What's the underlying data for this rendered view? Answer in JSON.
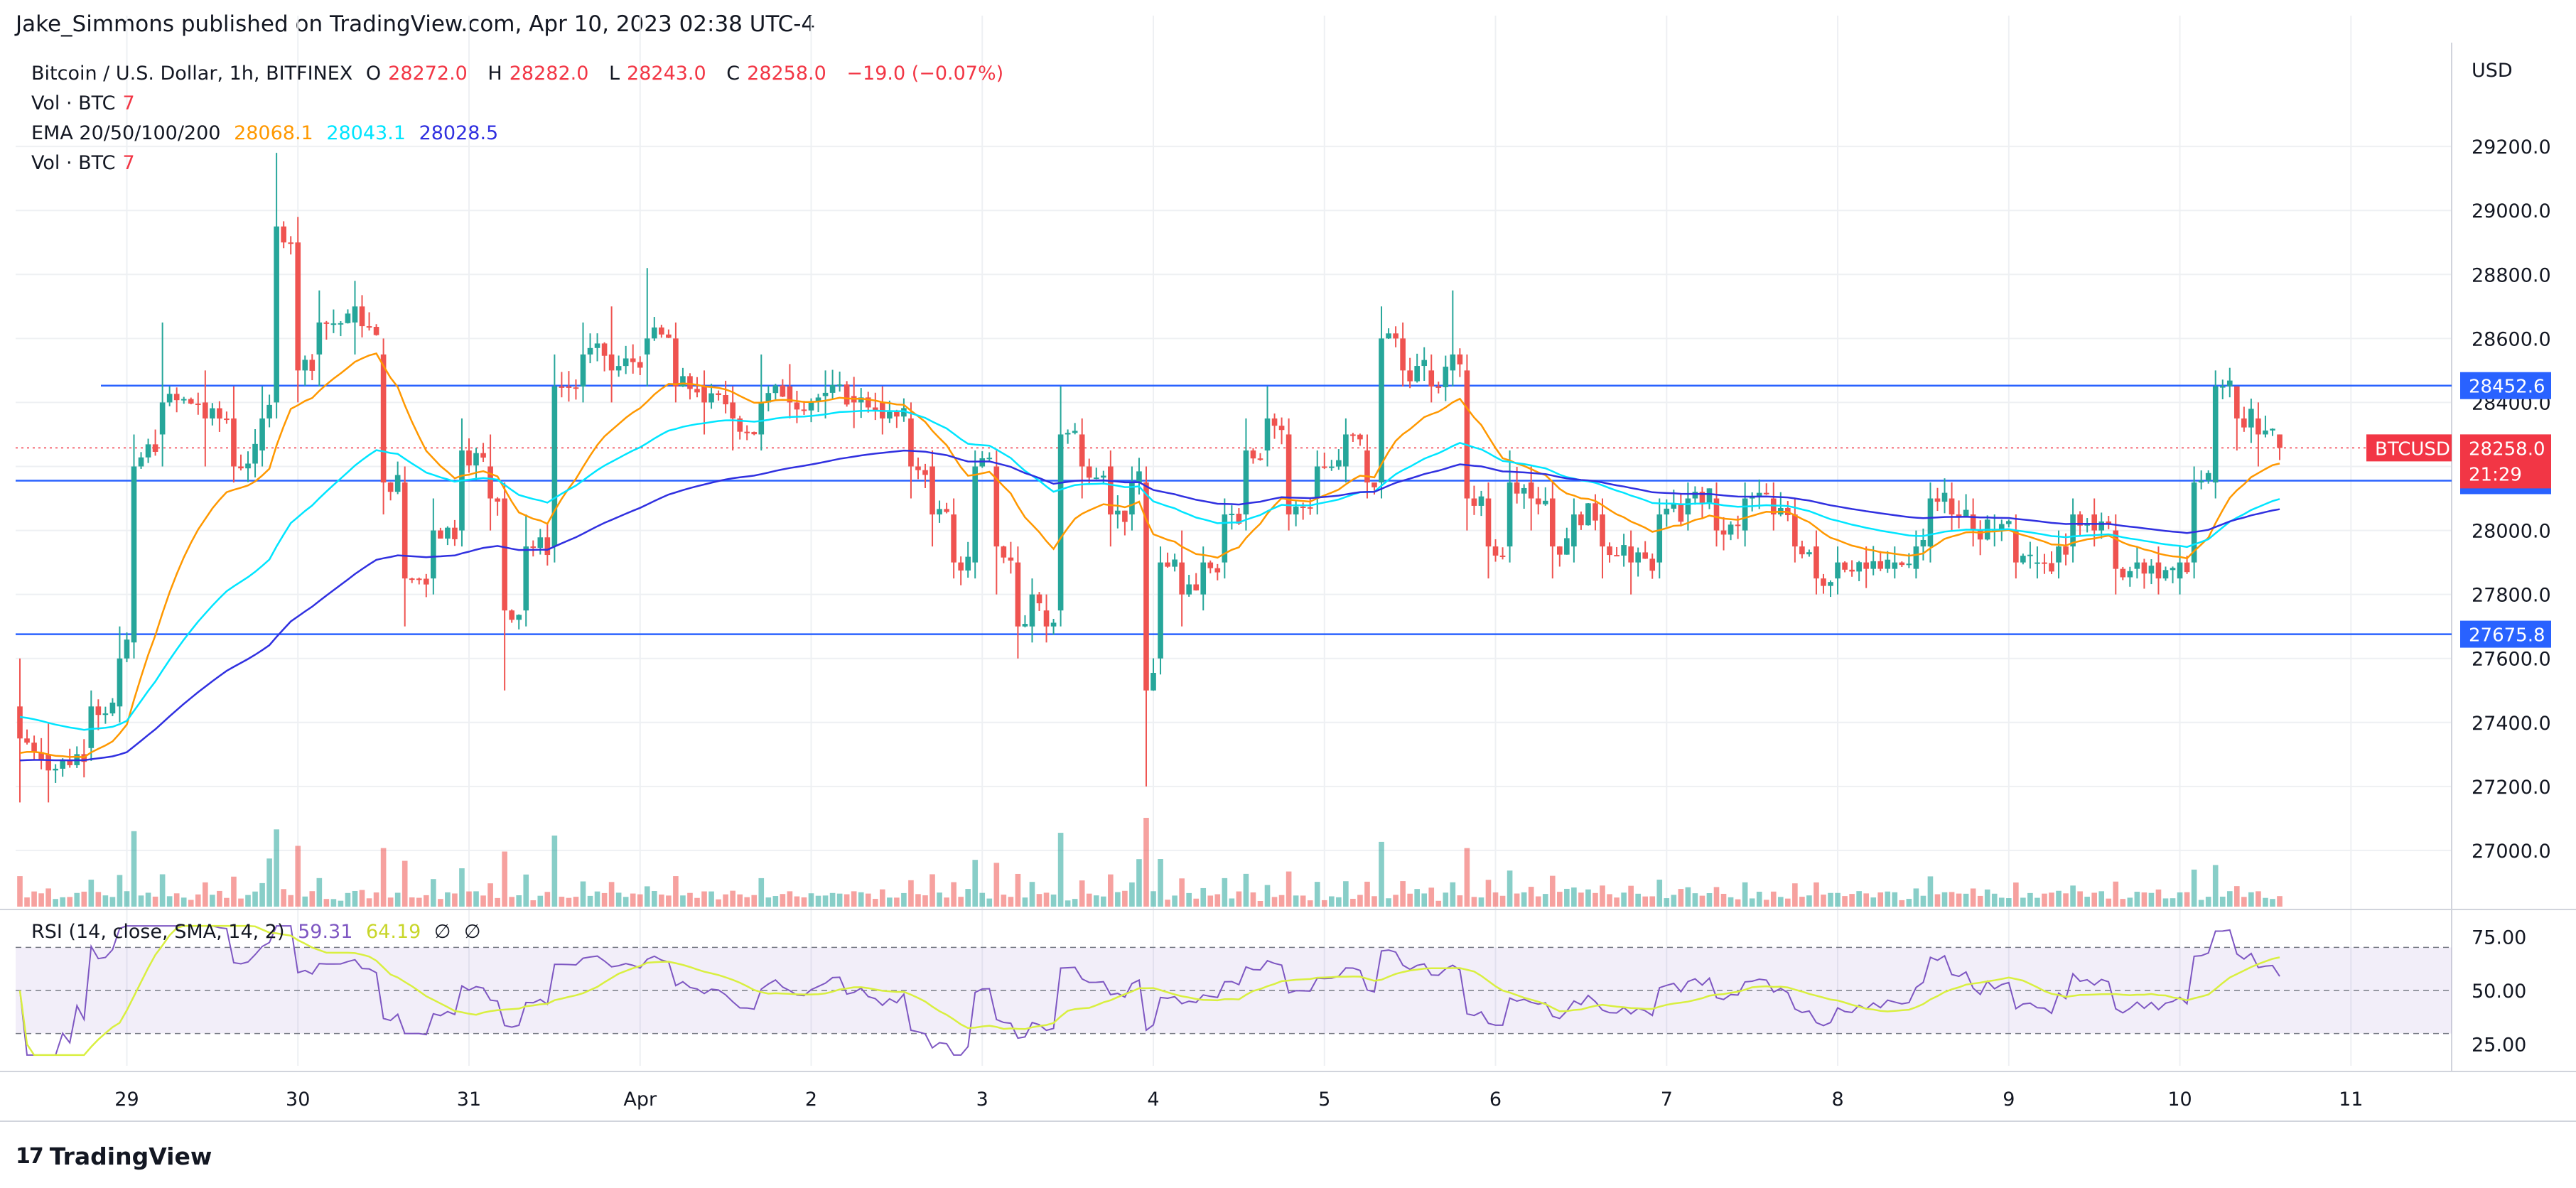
{
  "header": {
    "text": "Jake_Simmons published on TradingView.com, Apr 10, 2023 02:38 UTC-4"
  },
  "legend": {
    "symbol": "Bitcoin / U.S. Dollar, 1h, BITFINEX",
    "o_label": "O",
    "o_value": "28272.0",
    "h_label": "H",
    "h_value": "28282.0",
    "l_label": "L",
    "l_value": "28243.0",
    "c_label": "C",
    "c_value": "28258.0",
    "change": "−19.0 (−0.07%)",
    "vol1": "Vol · BTC",
    "vol1_value": "7",
    "ema_label": "EMA 20/50/100/200",
    "ema20": "28068.1",
    "ema50": "28043.1",
    "ema100": "28028.5",
    "vol2": "Vol · BTC",
    "vol2_value": "7"
  },
  "rsi_legend": {
    "label": "RSI (14, close, SMA, 14, 2)",
    "rsi": "59.31",
    "sma": "64.19",
    "s1": "∅",
    "s2": "∅"
  },
  "footer": {
    "brand": "TradingView",
    "mark": "17"
  },
  "colors": {
    "up": "#26a69a",
    "down": "#ef5350",
    "ema20": "#ff9800",
    "ema50": "#00e5ff",
    "ema100": "#3030e0",
    "hline": "#2962ff",
    "rsi": "#7e57c2",
    "rsi_sma": "#d9ef40"
  },
  "chart_data": {
    "type": "candlestick",
    "currency": "USD",
    "price_ticks": [
      "29200.0",
      "29000.0",
      "28800.0",
      "28600.0",
      "28400.0",
      "28200.0",
      "28000.0",
      "27800.0",
      "27600.0",
      "27400.0",
      "27200.0",
      "27000.0"
    ],
    "price_range": [
      26820,
      29520
    ],
    "x_ticks": [
      "29",
      "30",
      "31",
      "Apr",
      "2",
      "3",
      "4",
      "5",
      "6",
      "7",
      "8",
      "9",
      "10",
      "11"
    ],
    "horizontal_levels": [
      28452.6,
      28155.6,
      27675.8
    ],
    "current_price": {
      "label": "BTCUSD",
      "value": "28258.0",
      "countdown": "21:29"
    },
    "rsi_ticks": [
      "75.00",
      "50.00",
      "25.00"
    ],
    "rsi_range": [
      15,
      85
    ],
    "rsi_bands": [
      70,
      50,
      30
    ],
    "anchors": [
      [
        0,
        27450,
        27350,
        27600,
        27150
      ],
      [
        4,
        27300,
        27250,
        27400,
        27150
      ],
      [
        10,
        27320,
        27450,
        27500,
        27280
      ],
      [
        14,
        27450,
        27600,
        27700,
        27400
      ],
      [
        16,
        27650,
        28200,
        28300,
        27600
      ],
      [
        20,
        28300,
        28400,
        28650,
        28200
      ],
      [
        26,
        28400,
        28350,
        28500,
        28200
      ],
      [
        30,
        28350,
        28200,
        28450,
        28150
      ],
      [
        34,
        28250,
        28350,
        28450,
        28200
      ],
      [
        36,
        28400,
        28950,
        29180,
        28350
      ],
      [
        39,
        28900,
        28500,
        28980,
        28400
      ],
      [
        42,
        28550,
        28650,
        28750,
        28450
      ],
      [
        47,
        28650,
        28700,
        28780,
        28550
      ],
      [
        51,
        28550,
        28150,
        28600,
        28050
      ],
      [
        54,
        28150,
        27850,
        28200,
        27700
      ],
      [
        58,
        27850,
        28000,
        28100,
        27800
      ],
      [
        62,
        28000,
        28250,
        28350,
        27950
      ],
      [
        66,
        28200,
        28100,
        28300,
        28000
      ],
      [
        68,
        28100,
        27750,
        28150,
        27500
      ],
      [
        71,
        27750,
        27950,
        28050,
        27700
      ],
      [
        75,
        27950,
        28450,
        28550,
        27900
      ],
      [
        79,
        28450,
        28550,
        28650,
        28400
      ],
      [
        83,
        28550,
        28500,
        28700,
        28400
      ],
      [
        88,
        28550,
        28600,
        28820,
        28450
      ],
      [
        92,
        28600,
        28450,
        28650,
        28400
      ],
      [
        96,
        28450,
        28400,
        28500,
        28300
      ],
      [
        100,
        28400,
        28350,
        28450,
        28250
      ],
      [
        104,
        28300,
        28400,
        28550,
        28250
      ],
      [
        108,
        28450,
        28400,
        28520,
        28350
      ],
      [
        113,
        28420,
        28430,
        28500,
        28350
      ],
      [
        117,
        28420,
        28400,
        28480,
        28320
      ],
      [
        121,
        28400,
        28350,
        28450,
        28300
      ],
      [
        125,
        28350,
        28200,
        28400,
        28100
      ],
      [
        128,
        28200,
        28050,
        28250,
        27950
      ],
      [
        131,
        28050,
        27900,
        28100,
        27850
      ],
      [
        134,
        27900,
        28200,
        28250,
        27850
      ],
      [
        137,
        28200,
        27950,
        28250,
        27800
      ],
      [
        140,
        27900,
        27700,
        27950,
        27600
      ],
      [
        142,
        27700,
        27800,
        27850,
        27650
      ],
      [
        144,
        27750,
        27700,
        27800,
        27650
      ],
      [
        146,
        27750,
        28300,
        28450,
        27700
      ],
      [
        149,
        28300,
        28200,
        28350,
        28100
      ],
      [
        153,
        28200,
        28050,
        28250,
        27950
      ],
      [
        156,
        28050,
        28150,
        28200,
        28000
      ],
      [
        158,
        28150,
        27500,
        28200,
        27200
      ],
      [
        160,
        27600,
        27900,
        27950,
        27550
      ],
      [
        163,
        27900,
        27800,
        28000,
        27700
      ],
      [
        166,
        27800,
        27900,
        27950,
        27750
      ],
      [
        169,
        27900,
        28050,
        28100,
        27850
      ],
      [
        172,
        28050,
        28250,
        28350,
        28000
      ],
      [
        175,
        28250,
        28350,
        28450,
        28200
      ],
      [
        178,
        28300,
        28050,
        28350,
        28000
      ],
      [
        182,
        28100,
        28200,
        28250,
        28050
      ],
      [
        186,
        28200,
        28300,
        28350,
        28150
      ],
      [
        189,
        28250,
        28150,
        28300,
        28100
      ],
      [
        191,
        28150,
        28600,
        28700,
        28100
      ],
      [
        194,
        28600,
        28500,
        28650,
        28450
      ],
      [
        198,
        28500,
        28450,
        28550,
        28400
      ],
      [
        201,
        28500,
        28550,
        28750,
        28450
      ],
      [
        203,
        28500,
        28100,
        28550,
        28000
      ],
      [
        206,
        28100,
        27950,
        28150,
        27850
      ],
      [
        209,
        27950,
        28150,
        28250,
        27900
      ],
      [
        212,
        28150,
        28100,
        28200,
        28000
      ],
      [
        215,
        28100,
        27950,
        28150,
        27850
      ],
      [
        218,
        27950,
        28050,
        28100,
        27900
      ],
      [
        222,
        28050,
        27950,
        28100,
        27850
      ],
      [
        226,
        27950,
        27900,
        28000,
        27800
      ],
      [
        230,
        27900,
        28050,
        28100,
        27850
      ],
      [
        234,
        28050,
        28100,
        28150,
        28000
      ],
      [
        238,
        28100,
        28000,
        28150,
        27950
      ],
      [
        242,
        28000,
        28100,
        28150,
        27950
      ],
      [
        246,
        28100,
        28050,
        28150,
        28000
      ],
      [
        249,
        28050,
        27950,
        28100,
        27900
      ],
      [
        252,
        27950,
        27850,
        28000,
        27800
      ],
      [
        255,
        27850,
        27900,
        27950,
        27800
      ],
      [
        259,
        27900,
        27880,
        27950,
        27820
      ],
      [
        263,
        27880,
        27900,
        27950,
        27850
      ],
      [
        266,
        27880,
        27950,
        28000,
        27850
      ],
      [
        268,
        27950,
        28100,
        28150,
        27900
      ],
      [
        271,
        28100,
        28050,
        28150,
        28000
      ],
      [
        274,
        28050,
        28000,
        28100,
        27950
      ],
      [
        277,
        28000,
        28000,
        28050,
        27950
      ],
      [
        280,
        28000,
        27900,
        28050,
        27850
      ],
      [
        283,
        27900,
        27900,
        27950,
        27850
      ],
      [
        286,
        27900,
        27950,
        28000,
        27850
      ],
      [
        288,
        27950,
        28050,
        28100,
        27900
      ],
      [
        291,
        28050,
        28000,
        28100,
        27950
      ],
      [
        294,
        28000,
        27880,
        28050,
        27800
      ],
      [
        297,
        27880,
        27900,
        27950,
        27850
      ],
      [
        300,
        27900,
        27850,
        27950,
        27800
      ],
      [
        303,
        27850,
        27900,
        27950,
        27800
      ],
      [
        305,
        27900,
        28150,
        28200,
        27850
      ],
      [
        308,
        28150,
        28450,
        28500,
        28100
      ],
      [
        311,
        28450,
        28350,
        28450,
        28250
      ],
      [
        314,
        28350,
        28300,
        28400,
        28200
      ],
      [
        317,
        28300,
        28258,
        28300,
        28220
      ]
    ]
  }
}
